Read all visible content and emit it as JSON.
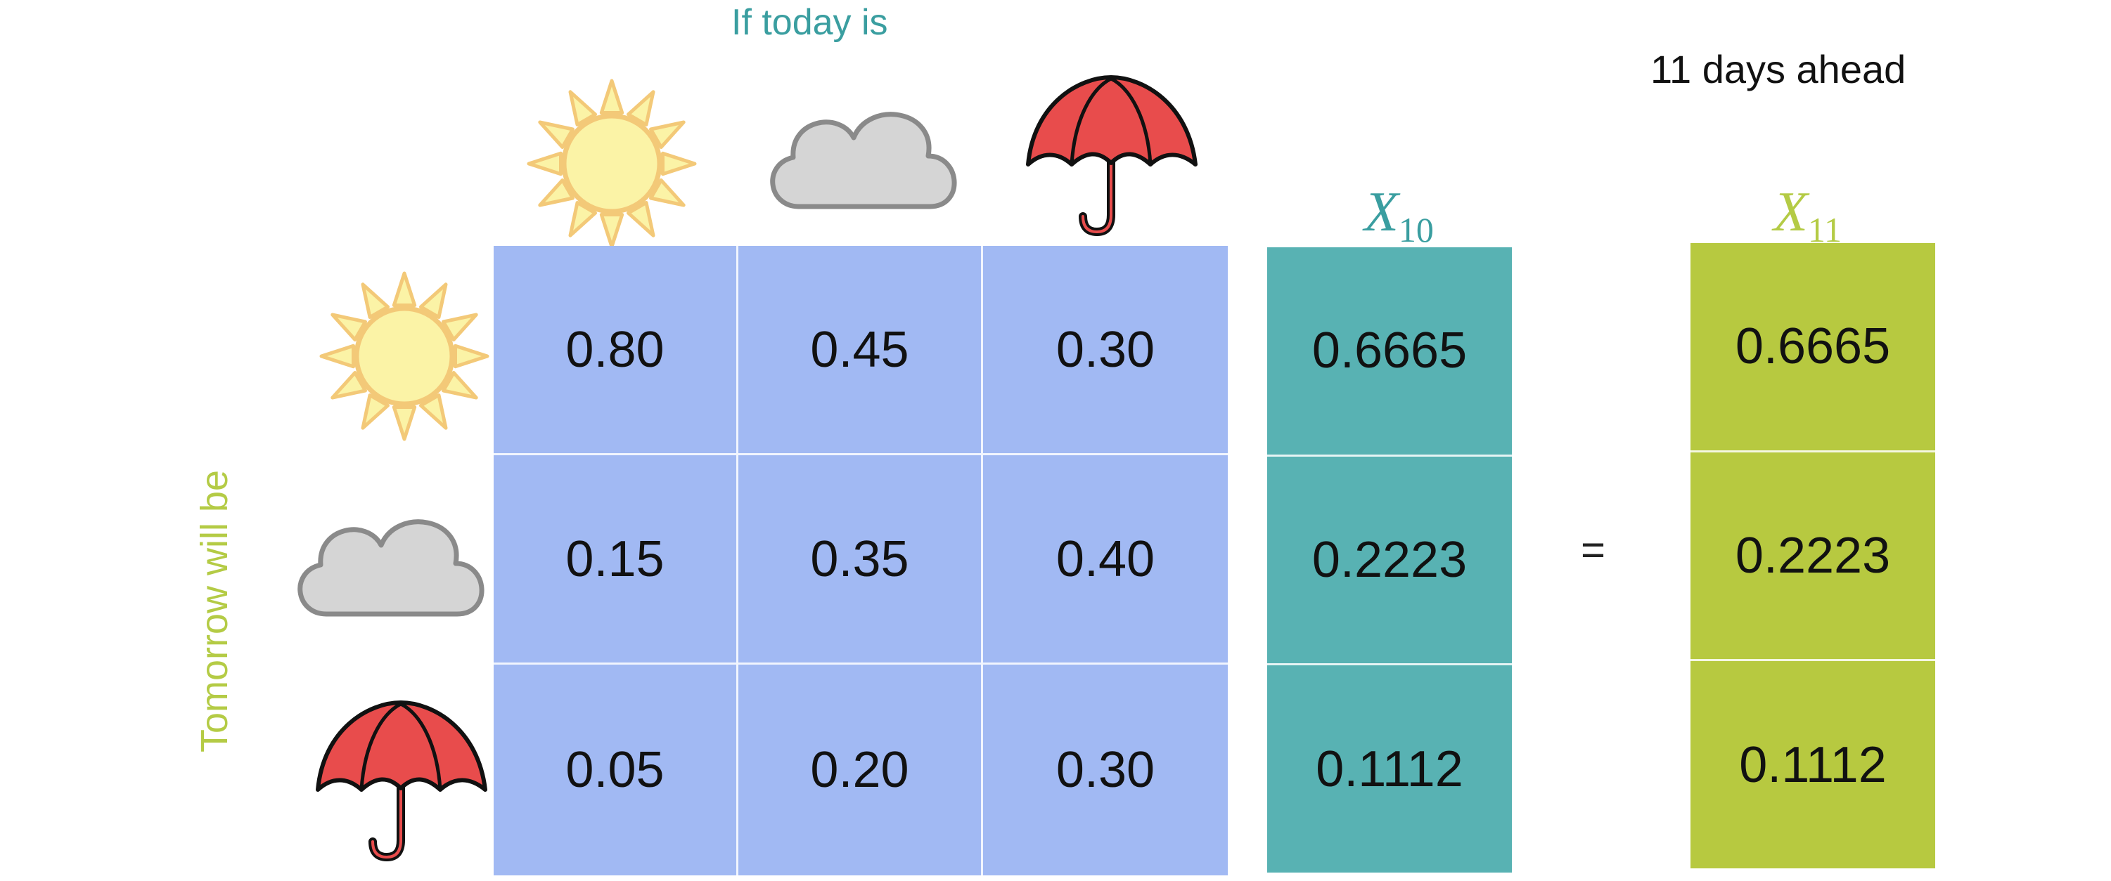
{
  "labels": {
    "today": "If today is",
    "tomorrow": "Tomorrow will be",
    "days_ahead": "11 days ahead",
    "equals": "="
  },
  "vectors": {
    "x10": {
      "symbol": "X",
      "subscript": "10",
      "values": [
        "0.6665",
        "0.2223",
        "0.1112"
      ]
    },
    "x11": {
      "symbol": "X",
      "subscript": "11",
      "values": [
        "0.6665",
        "0.2223",
        "0.1112"
      ]
    }
  },
  "matrix": {
    "columns": [
      "sun-icon",
      "cloud-icon",
      "umbrella-icon"
    ],
    "rows": [
      "sun-icon",
      "cloud-icon",
      "umbrella-icon"
    ],
    "values": [
      [
        "0.80",
        "0.45",
        "0.30"
      ],
      [
        "0.15",
        "0.35",
        "0.40"
      ],
      [
        "0.05",
        "0.20",
        "0.30"
      ]
    ]
  },
  "colors": {
    "matrix_fill": "#a1b9f3",
    "teal_fill": "#58b2b3",
    "green_fill": "#b7c940",
    "teal_label": "#3a9ea0",
    "green_label": "#b4cb45",
    "sun_fill": "#fbf3a6",
    "sun_stroke": "#f3c978",
    "cloud_fill": "#d5d5d5",
    "cloud_stroke": "#8a8a8a",
    "umbrella_fill": "#e84c4c"
  }
}
